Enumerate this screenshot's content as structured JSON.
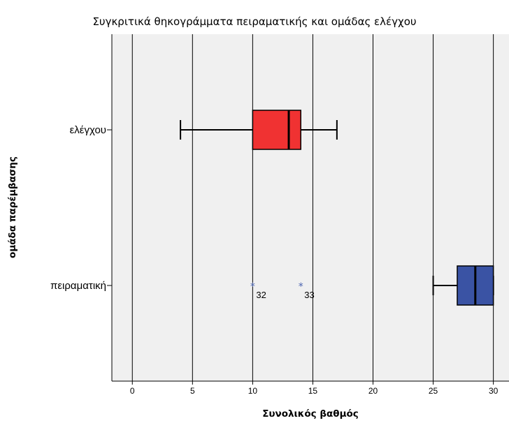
{
  "chart_data": {
    "type": "boxplot",
    "orientation": "horizontal",
    "title": "Συγκριτικά θηκογράμματα πειραματικής και ομάδας ελέγχου",
    "xlabel": "Συνολικός βαθμός",
    "ylabel": "ομάδα παρέμβασης",
    "xlim": [
      -1.7,
      31.3
    ],
    "xticks": [
      0,
      5,
      10,
      15,
      20,
      25,
      30
    ],
    "grid": true,
    "categories": [
      "ελέγχου",
      "πειραματική"
    ],
    "series": [
      {
        "category": "ελέγχου",
        "min": 4,
        "q1": 10,
        "median": 13,
        "q3": 14,
        "max": 17,
        "color": "#f03232",
        "outliers": []
      },
      {
        "category": "πειραματική",
        "min": 25,
        "q1": 27,
        "median": 28.5,
        "q3": 30,
        "max": 30,
        "color": "#3a53a4",
        "outliers": [
          {
            "value": 10,
            "label": "32"
          },
          {
            "value": 14,
            "label": "33"
          }
        ]
      }
    ]
  },
  "colors": {
    "plot_background": "#f0f0f0",
    "gridline": "#000000",
    "outlier": "#4a63b0"
  }
}
